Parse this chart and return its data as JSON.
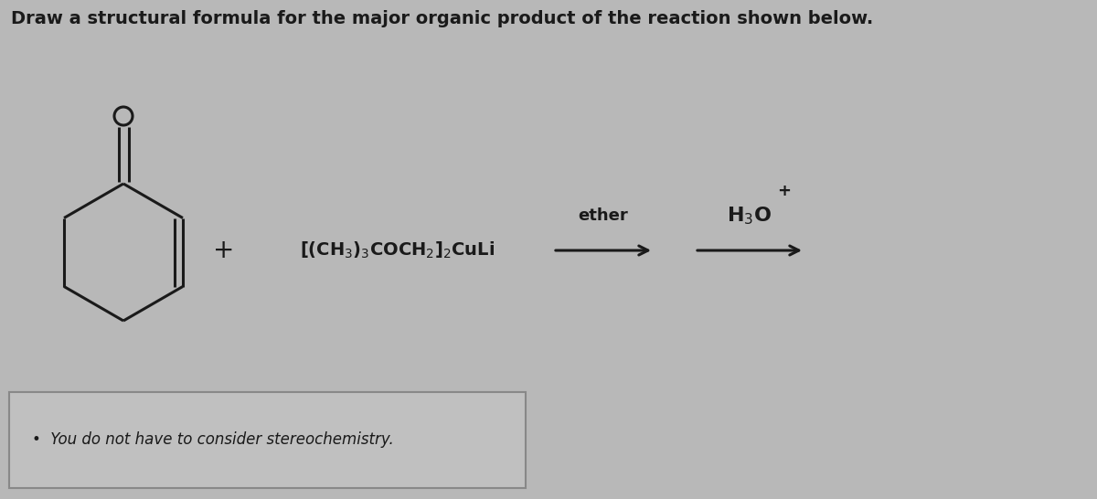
{
  "title": "Draw a structural formula for the major organic product of the reaction shown below.",
  "title_fontsize": 14,
  "background_color": "#b8b8b8",
  "reagent_text": "[(CH$_3$)$_3$COCH$_2$]$_2$CuLi",
  "solvent_text": "ether",
  "workup_text": "H$_3$O",
  "workup_superscript": "+",
  "bullet_text": "You do not have to consider stereochemistry.",
  "plus_sign": "+",
  "text_color": "#1a1a1a",
  "arrow_color": "#1a1a1a",
  "line_color": "#1a1a1a",
  "line_width": 2.2,
  "fig_width": 12.0,
  "fig_height": 5.46,
  "dpi": 100
}
